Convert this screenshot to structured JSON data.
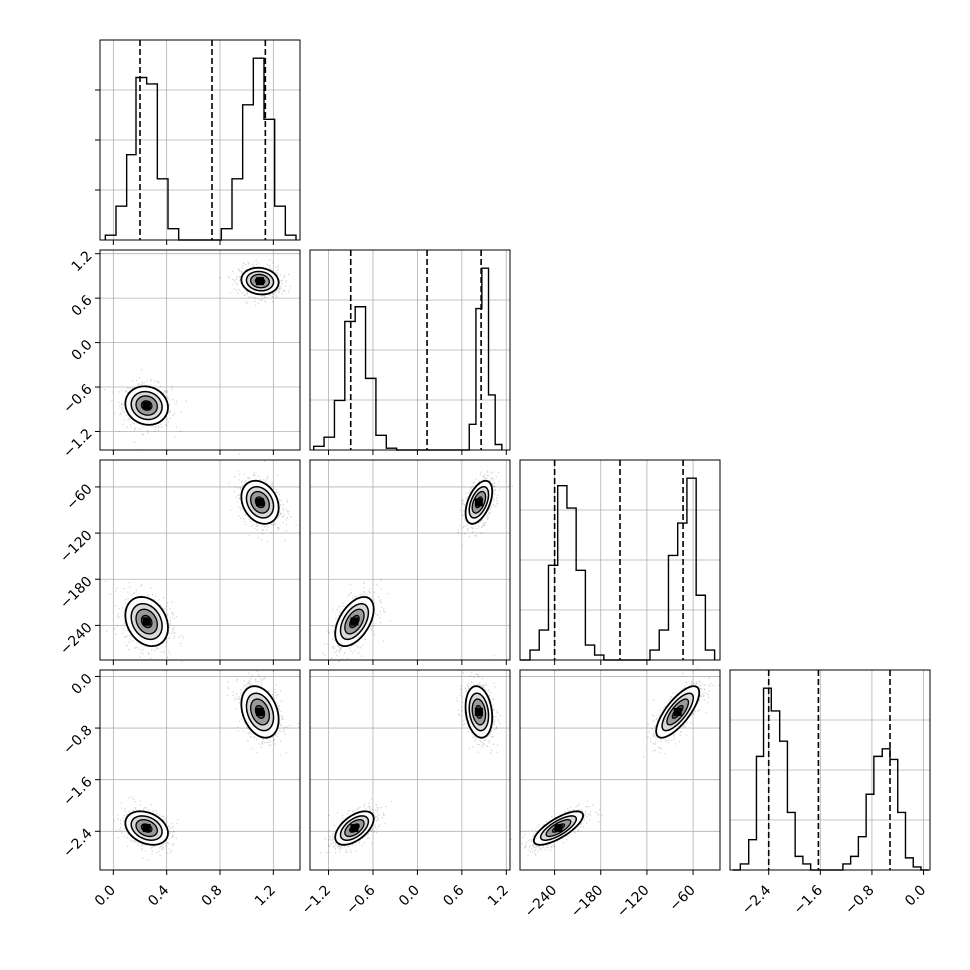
{
  "chart_data": {
    "type": "corner",
    "grid": true,
    "panel_frame_color": "#000000",
    "contour_levels": 4,
    "parameters": [
      {
        "range": [
          -0.1,
          1.4
        ],
        "ticks": [
          0.0,
          0.4,
          0.8,
          1.2
        ],
        "tick_labels": [
          "0.0",
          "0.4",
          "0.8",
          "1.2"
        ],
        "quantiles": [
          0.2,
          0.74,
          1.14
        ],
        "histogram": {
          "edges": [
            -0.06,
            0.02,
            0.1,
            0.17,
            0.25,
            0.33,
            0.41,
            0.49,
            0.57,
            0.65,
            0.73,
            0.81,
            0.89,
            0.97,
            1.05,
            1.13,
            1.21,
            1.29,
            1.37
          ],
          "counts": [
            3,
            21,
            53,
            101,
            97,
            38,
            7,
            0,
            0,
            0,
            0,
            7,
            38,
            84,
            113,
            75,
            21,
            3
          ]
        },
        "modes": [
          {
            "center": 0.25,
            "spread": 0.08
          },
          {
            "center": 1.1,
            "spread": 0.07
          }
        ]
      },
      {
        "range": [
          -1.45,
          1.25
        ],
        "ticks": [
          -1.2,
          -0.6,
          0.0,
          0.6,
          1.2
        ],
        "tick_labels": [
          "−1.2",
          "−0.6",
          "0.0",
          "0.6",
          "1.2"
        ],
        "quantiles": [
          -0.9,
          0.13,
          0.86
        ],
        "histogram": {
          "edges": [
            -1.4,
            -1.26,
            -1.12,
            -0.98,
            -0.84,
            -0.7,
            -0.56,
            -0.42,
            -0.28,
            -0.14,
            0.0,
            0.14,
            0.28,
            0.42,
            0.56,
            0.7,
            0.79,
            0.87,
            0.96,
            1.05,
            1.14
          ],
          "counts": [
            2,
            7,
            27,
            70,
            78,
            39,
            8,
            1,
            0,
            0,
            0,
            0,
            0,
            0,
            0,
            14,
            77,
            99,
            30,
            3
          ]
        },
        "modes": [
          {
            "center": -0.85,
            "spread": 0.13
          },
          {
            "center": 0.83,
            "spread": 0.09
          }
        ]
      },
      {
        "range": [
          -285,
          -25
        ],
        "ticks": [
          -240,
          -180,
          -120,
          -60
        ],
        "tick_labels": [
          "−240",
          "−180",
          "−120",
          "−60"
        ],
        "quantiles": [
          -240,
          -155,
          -73
        ],
        "histogram": {
          "edges": [
            -285,
            -272,
            -260,
            -248,
            -236,
            -224,
            -212,
            -200,
            -188,
            -176,
            -164,
            -152,
            -140,
            -128,
            -116,
            -104,
            -92,
            -80,
            -68,
            -56,
            -44,
            -32
          ],
          "counts": [
            0,
            4,
            12,
            38,
            70,
            61,
            36,
            6,
            2,
            0,
            0,
            0,
            0,
            0,
            4,
            12,
            42,
            55,
            73,
            26,
            4
          ]
        },
        "modes": [
          {
            "center": -235,
            "spread": 16
          },
          {
            "center": -80,
            "spread": 14
          }
        ]
      },
      {
        "range": [
          -3.0,
          0.1
        ],
        "ticks": [
          -2.4,
          -1.6,
          -0.8,
          0.0
        ],
        "tick_labels": [
          "−2.4",
          "−1.6",
          "−0.8",
          "0.0"
        ],
        "quantiles": [
          -2.4,
          -1.63,
          -0.52
        ],
        "histogram": {
          "edges": [
            -2.96,
            -2.84,
            -2.71,
            -2.59,
            -2.48,
            -2.36,
            -2.23,
            -2.11,
            -1.99,
            -1.87,
            -1.75,
            -1.62,
            -1.5,
            -1.38,
            -1.25,
            -1.13,
            -1.01,
            -0.89,
            -0.77,
            -0.64,
            -0.52,
            -0.4,
            -0.28,
            -0.16,
            -0.04,
            0.08
          ],
          "counts": [
            0,
            4,
            20,
            75,
            120,
            105,
            85,
            38,
            9,
            4,
            0,
            0,
            0,
            0,
            4,
            9,
            22,
            50,
            75,
            80,
            73,
            38,
            8,
            2,
            0
          ]
        },
        "modes": [
          {
            "center": -2.35,
            "spread": 0.13
          },
          {
            "center": -0.55,
            "spread": 0.2
          }
        ]
      }
    ],
    "pair_correlations": [
      {
        "row": 1,
        "col": 0,
        "rho": [
          -0.1,
          -0.1
        ]
      },
      {
        "row": 2,
        "col": 0,
        "rho": [
          -0.25,
          -0.25
        ]
      },
      {
        "row": 2,
        "col": 1,
        "rho": [
          0.5,
          0.5
        ]
      },
      {
        "row": 3,
        "col": 0,
        "rho": [
          -0.3,
          -0.3
        ]
      },
      {
        "row": 3,
        "col": 1,
        "rho": [
          0.55,
          -0.2
        ]
      },
      {
        "row": 3,
        "col": 2,
        "rho": [
          0.75,
          0.75
        ]
      }
    ]
  }
}
